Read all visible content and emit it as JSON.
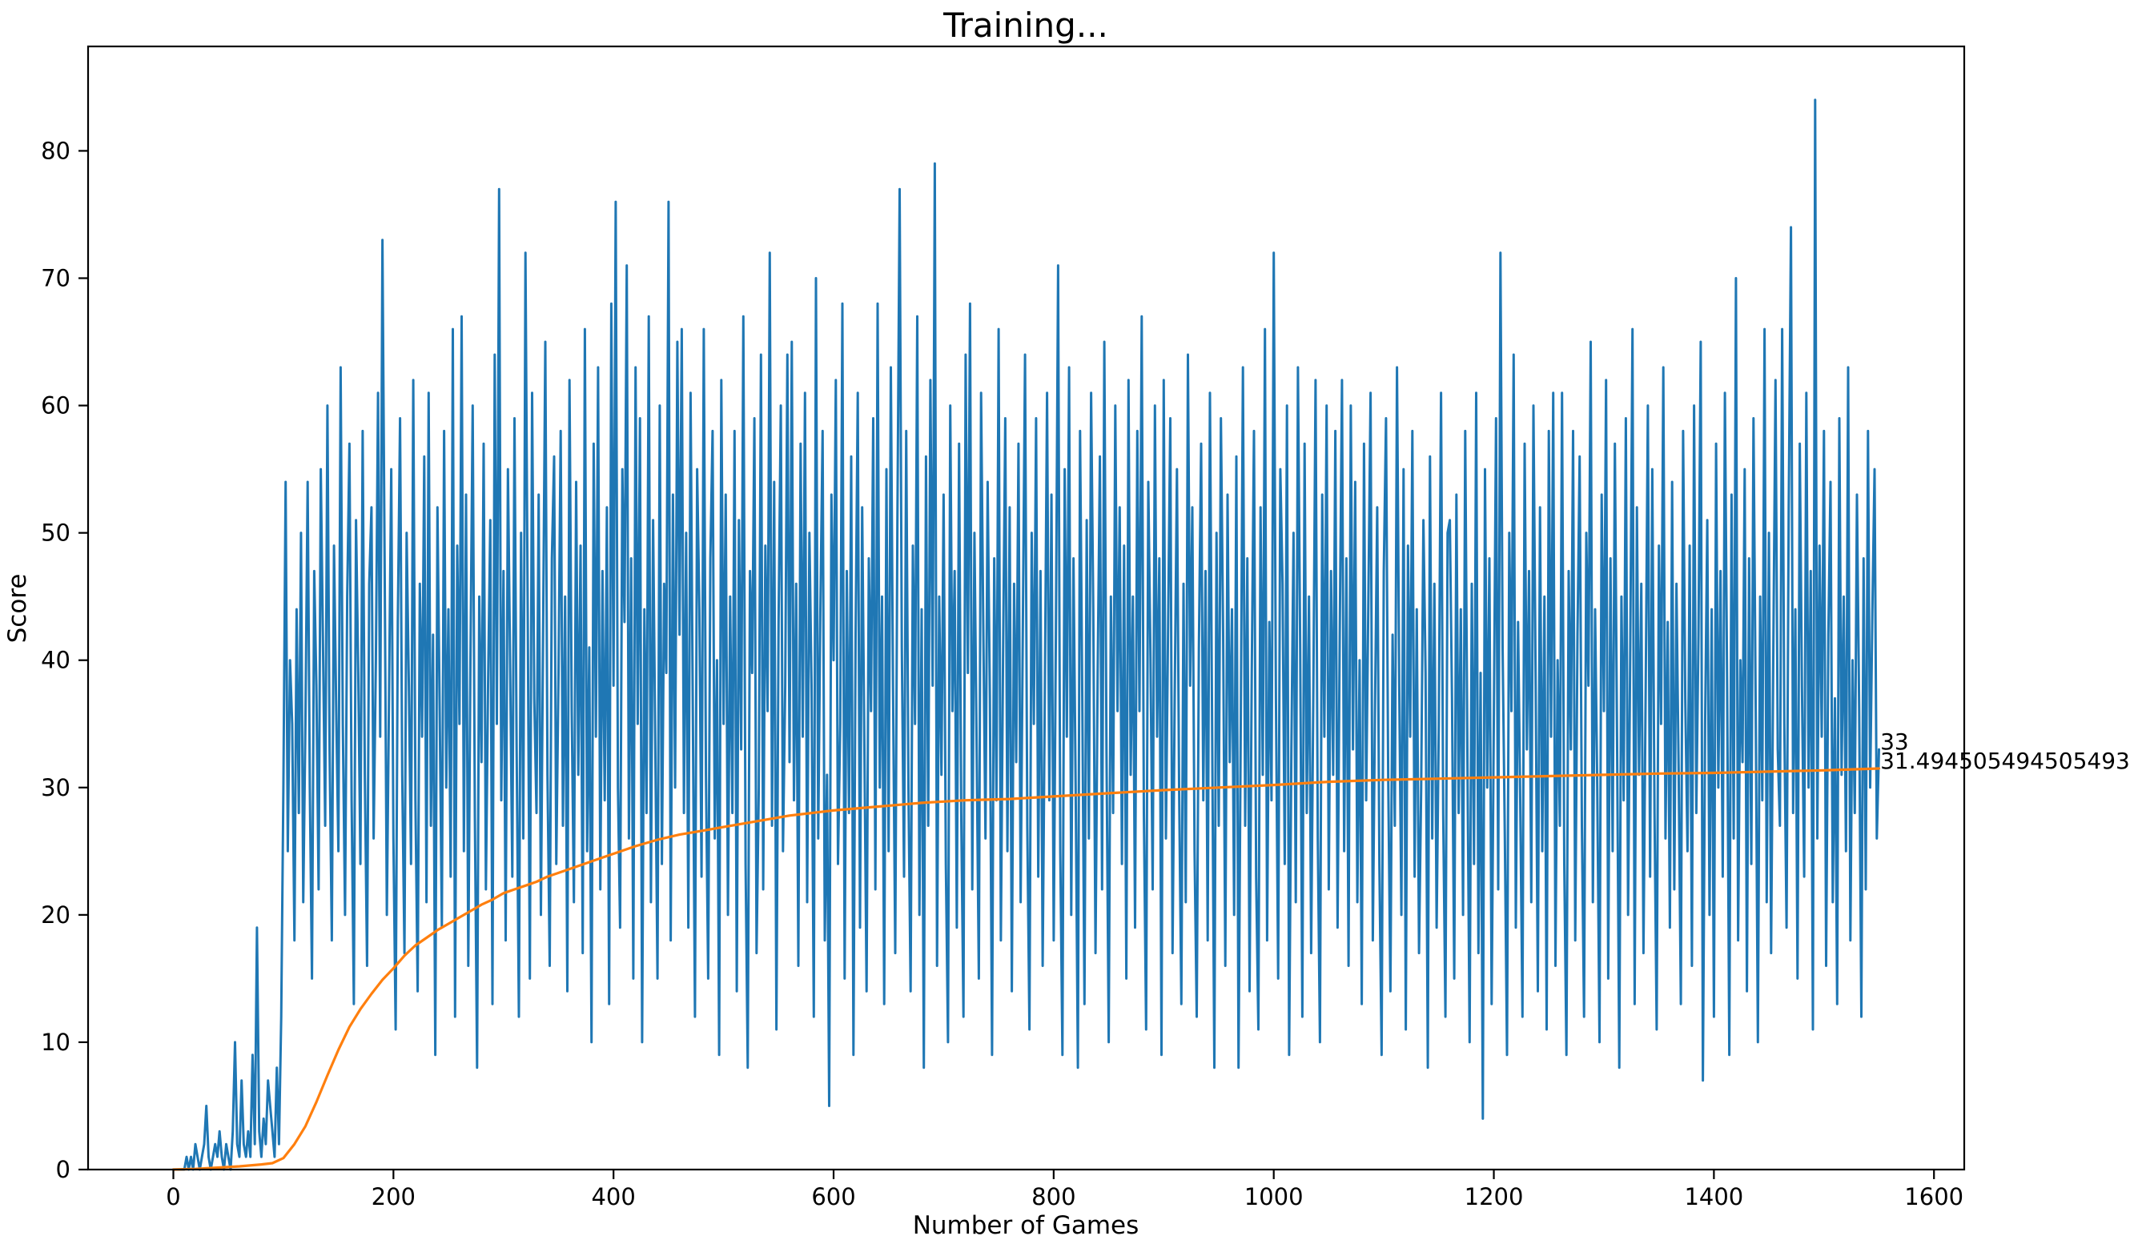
{
  "figure": {
    "background": "#ffffff"
  },
  "chart_data": {
    "type": "line",
    "title": "Training...",
    "xlabel": "Number of Games",
    "ylabel": "Score",
    "xlim": [
      -77.5,
      1627.5
    ],
    "ylim": [
      0,
      88.2
    ],
    "x_ticks": [
      0,
      200,
      400,
      600,
      800,
      1000,
      1200,
      1400,
      1600
    ],
    "y_ticks": [
      0,
      10,
      20,
      30,
      40,
      50,
      60,
      70,
      80
    ],
    "grid": false,
    "legend": "none",
    "annotations": [
      {
        "text": "33",
        "x": 1549,
        "y": 33
      },
      {
        "text": "31.494505494505493",
        "x": 1549,
        "y": 31.494505494505493
      }
    ],
    "series": [
      {
        "name": "score-per-game",
        "color": "#1f77b4",
        "x_start": 0,
        "x_step": 2,
        "values": [
          0,
          0,
          0,
          0,
          0,
          0,
          1,
          0,
          1,
          0,
          2,
          1,
          0,
          1,
          2,
          5,
          1,
          0,
          1,
          2,
          1,
          3,
          1,
          0,
          2,
          1,
          0,
          3,
          10,
          2,
          1,
          7,
          2,
          1,
          3,
          1,
          9,
          2,
          19,
          3,
          1,
          4,
          2,
          7,
          5,
          3,
          1,
          8,
          2,
          12,
          30,
          54,
          25,
          40,
          35,
          18,
          44,
          28,
          50,
          21,
          35,
          54,
          30,
          15,
          47,
          38,
          22,
          55,
          41,
          27,
          60,
          33,
          18,
          49,
          36,
          25,
          63,
          35,
          20,
          45,
          57,
          29,
          13,
          51,
          39,
          24,
          58,
          31,
          16,
          46,
          52,
          26,
          40,
          61,
          34,
          73,
          48,
          20,
          37,
          55,
          26,
          11,
          43,
          59,
          31,
          17,
          50,
          38,
          24,
          62,
          29,
          14,
          46,
          34,
          56,
          21,
          61,
          27,
          42,
          9,
          52,
          36,
          19,
          58,
          30,
          44,
          23,
          66,
          12,
          49,
          35,
          67,
          25,
          53,
          16,
          40,
          60,
          28,
          8,
          45,
          32,
          57,
          22,
          38,
          51,
          13,
          64,
          35,
          77,
          29,
          47,
          18,
          55,
          40,
          23,
          59,
          33,
          12,
          50,
          26,
          72,
          44,
          15,
          61,
          37,
          28,
          53,
          20,
          42,
          65,
          31,
          16,
          48,
          56,
          24,
          39,
          58,
          27,
          45,
          14,
          62,
          36,
          21,
          54,
          31,
          49,
          17,
          66,
          25,
          41,
          10,
          57,
          34,
          63,
          22,
          47,
          29,
          52,
          13,
          68,
          38,
          76,
          30,
          19,
          55,
          43,
          71,
          26,
          48,
          15,
          63,
          35,
          59,
          10,
          44,
          28,
          67,
          21,
          51,
          33,
          15,
          60,
          24,
          46,
          39,
          76,
          18,
          53,
          30,
          65,
          42,
          66,
          28,
          50,
          19,
          61,
          37,
          12,
          55,
          44,
          23,
          66,
          31,
          15,
          48,
          58,
          26,
          40,
          9,
          62,
          35,
          53,
          20,
          45,
          28,
          58,
          14,
          51,
          33,
          67,
          24,
          8,
          47,
          39,
          59,
          17,
          30,
          64,
          22,
          49,
          36,
          72,
          27,
          54,
          11,
          43,
          60,
          25,
          38,
          64,
          32,
          65,
          29,
          46,
          16,
          57,
          34,
          61,
          21,
          50,
          38,
          12,
          70,
          26,
          44,
          58,
          18,
          31,
          5,
          53,
          40,
          62,
          24,
          35,
          68,
          15,
          47,
          28,
          56,
          9,
          42,
          61,
          19,
          52,
          33,
          14,
          48,
          36,
          59,
          22,
          68,
          30,
          45,
          13,
          55,
          25,
          63,
          38,
          17,
          51,
          77,
          41,
          23,
          58,
          30,
          14,
          49,
          35,
          67,
          20,
          44,
          8,
          56,
          27,
          62,
          38,
          79,
          16,
          45,
          31,
          53,
          24,
          10,
          60,
          36,
          47,
          19,
          57,
          28,
          12,
          64,
          39,
          68,
          22,
          50,
          33,
          15,
          61,
          43,
          26,
          54,
          37,
          9,
          48,
          29,
          66,
          18,
          40,
          59,
          25,
          52,
          14,
          46,
          32,
          57,
          21,
          43,
          64,
          27,
          11,
          50,
          35,
          59,
          23,
          47,
          16,
          38,
          61,
          29,
          53,
          18,
          42,
          71,
          25,
          9,
          55,
          34,
          63,
          20,
          48,
          30,
          8,
          58,
          37,
          13,
          51,
          26,
          61,
          44,
          17,
          39,
          56,
          22,
          65,
          33,
          10,
          45,
          28,
          60,
          36,
          52,
          24,
          49,
          15,
          62,
          31,
          45,
          19,
          58,
          36,
          67,
          28,
          11,
          54,
          40,
          22,
          60,
          34,
          48,
          9,
          62,
          26,
          43,
          59,
          17,
          37,
          55,
          30,
          13,
          46,
          21,
          64,
          38,
          52,
          25,
          12,
          41,
          57,
          29,
          47,
          18,
          61,
          35,
          8,
          50,
          27,
          59,
          42,
          16,
          53,
          32,
          44,
          20,
          56,
          8,
          35,
          63,
          27,
          48,
          14,
          39,
          58,
          23,
          11,
          52,
          31,
          66,
          18,
          43,
          29,
          72,
          37,
          15,
          55,
          46,
          24,
          60,
          9,
          33,
          50,
          21,
          63,
          41,
          12,
          57,
          28,
          45,
          17,
          38,
          62,
          26,
          10,
          53,
          34,
          60,
          22,
          47,
          31,
          58,
          19,
          42,
          62,
          25,
          48,
          16,
          60,
          33,
          54,
          21,
          40,
          13,
          57,
          29,
          45,
          61,
          18,
          36,
          52,
          24,
          9,
          47,
          59,
          31,
          14,
          42,
          27,
          63,
          38,
          20,
          55,
          11,
          49,
          34,
          58,
          23,
          44,
          17,
          30,
          51,
          39,
          8,
          56,
          26,
          46,
          19,
          35,
          61,
          28,
          12,
          50,
          51,
          37,
          15,
          53,
          28,
          44,
          20,
          58,
          32,
          10,
          46,
          24,
          61,
          17,
          39,
          4,
          55,
          30,
          48,
          13,
          35,
          59,
          22,
          72,
          41,
          26,
          9,
          50,
          36,
          64,
          19,
          43,
          29,
          12,
          57,
          33,
          47,
          21,
          60,
          38,
          14,
          52,
          25,
          45,
          11,
          58,
          34,
          61,
          16,
          40,
          27,
          61,
          24,
          9,
          47,
          33,
          58,
          18,
          42,
          56,
          27,
          12,
          50,
          38,
          65,
          21,
          44,
          30,
          10,
          53,
          36,
          62,
          15,
          48,
          25,
          57,
          34,
          8,
          45,
          29,
          59,
          20,
          41,
          66,
          13,
          52,
          31,
          46,
          17,
          38,
          60,
          23,
          55,
          28,
          11,
          49,
          35,
          63,
          26,
          43,
          19,
          54,
          22,
          46,
          31,
          13,
          58,
          37,
          25,
          49,
          16,
          60,
          28,
          42,
          65,
          7,
          35,
          51,
          20,
          44,
          12,
          57,
          30,
          47,
          23,
          61,
          38,
          9,
          53,
          26,
          70,
          18,
          40,
          32,
          55,
          14,
          48,
          24,
          59,
          36,
          10,
          45,
          29,
          66,
          21,
          50,
          17,
          41,
          62,
          33,
          27,
          66,
          35,
          19,
          52,
          74,
          28,
          44,
          15,
          57,
          38,
          23,
          61,
          30,
          47,
          11,
          84,
          26,
          49,
          34,
          58,
          16,
          42,
          54,
          21,
          37,
          13,
          59,
          31,
          45,
          25,
          63,
          18,
          40,
          28,
          53,
          36,
          12,
          48,
          22,
          58,
          30,
          44,
          55,
          26,
          33
        ]
      },
      {
        "name": "mean-score",
        "color": "#ff7f0e",
        "points": [
          [
            0,
            0
          ],
          [
            20,
            0.05
          ],
          [
            40,
            0.15
          ],
          [
            60,
            0.25
          ],
          [
            80,
            0.4
          ],
          [
            90,
            0.5
          ],
          [
            100,
            0.9
          ],
          [
            110,
            2.0
          ],
          [
            120,
            3.4
          ],
          [
            130,
            5.3
          ],
          [
            140,
            7.4
          ],
          [
            150,
            9.4
          ],
          [
            160,
            11.2
          ],
          [
            170,
            12.6
          ],
          [
            180,
            13.8
          ],
          [
            190,
            14.9
          ],
          [
            200,
            15.8
          ],
          [
            210,
            16.8
          ],
          [
            220,
            17.6
          ],
          [
            230,
            18.2
          ],
          [
            240,
            18.8
          ],
          [
            250,
            19.3
          ],
          [
            260,
            19.8
          ],
          [
            270,
            20.3
          ],
          [
            280,
            20.8
          ],
          [
            290,
            21.2
          ],
          [
            300,
            21.7
          ],
          [
            310,
            22.0
          ],
          [
            320,
            22.3
          ],
          [
            330,
            22.6
          ],
          [
            340,
            23.0
          ],
          [
            360,
            23.6
          ],
          [
            380,
            24.2
          ],
          [
            400,
            24.8
          ],
          [
            420,
            25.4
          ],
          [
            440,
            25.9
          ],
          [
            460,
            26.3
          ],
          [
            480,
            26.6
          ],
          [
            500,
            26.9
          ],
          [
            520,
            27.2
          ],
          [
            540,
            27.5
          ],
          [
            560,
            27.8
          ],
          [
            580,
            28.0
          ],
          [
            600,
            28.2
          ],
          [
            620,
            28.35
          ],
          [
            640,
            28.5
          ],
          [
            660,
            28.65
          ],
          [
            680,
            28.8
          ],
          [
            700,
            28.9
          ],
          [
            720,
            29.0
          ],
          [
            740,
            29.05
          ],
          [
            760,
            29.1
          ],
          [
            780,
            29.2
          ],
          [
            800,
            29.3
          ],
          [
            850,
            29.55
          ],
          [
            900,
            29.8
          ],
          [
            950,
            30.0
          ],
          [
            1000,
            30.2
          ],
          [
            1050,
            30.45
          ],
          [
            1100,
            30.6
          ],
          [
            1150,
            30.7
          ],
          [
            1200,
            30.8
          ],
          [
            1250,
            30.9
          ],
          [
            1300,
            31.0
          ],
          [
            1350,
            31.1
          ],
          [
            1400,
            31.15
          ],
          [
            1450,
            31.25
          ],
          [
            1500,
            31.35
          ],
          [
            1550,
            31.494505494505493
          ]
        ]
      }
    ]
  }
}
